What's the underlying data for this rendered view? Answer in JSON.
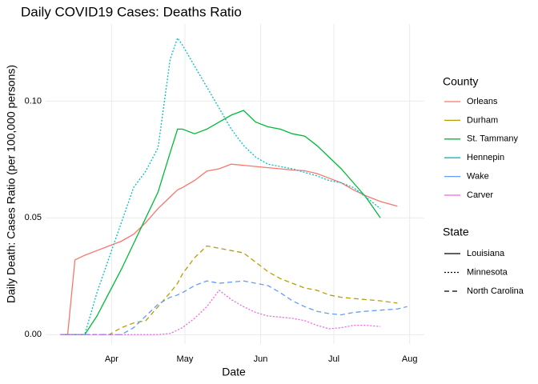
{
  "chart_data": {
    "type": "line",
    "title": "Daily COVID19 Cases: Deaths Ratio",
    "x_label": "Date",
    "y_label": "Daily Death: Cases Ratio (per 100,000 persons)",
    "x": [
      10,
      13,
      16,
      20,
      25,
      30,
      35,
      40,
      45,
      50,
      55,
      58,
      60,
      65,
      70,
      75,
      80,
      85,
      90,
      95,
      100,
      105,
      110,
      115,
      120,
      125,
      130,
      135,
      141,
      148,
      152
    ],
    "xlim": [
      4,
      159
    ],
    "xticks": [
      {
        "value": 31,
        "label": "Apr"
      },
      {
        "value": 61,
        "label": "May"
      },
      {
        "value": 92,
        "label": "Jun"
      },
      {
        "value": 122,
        "label": "Jul"
      },
      {
        "value": 153,
        "label": "Aug"
      }
    ],
    "ylim": [
      -0.004,
      0.133
    ],
    "yticks": [
      {
        "value": 0,
        "label": "0.00"
      },
      {
        "value": 0.05,
        "label": "0.05"
      },
      {
        "value": 0.1,
        "label": "0.10"
      }
    ],
    "grid": true,
    "legend_title": "County",
    "series": [
      {
        "name": "Orleans",
        "color": "#F8766D",
        "linetype": "solid",
        "values": [
          0,
          0,
          0.032,
          0.034,
          0.036,
          0.038,
          0.04,
          0.043,
          0.048,
          0.054,
          0.059,
          0.062,
          0.063,
          0.066,
          0.07,
          0.071,
          0.073,
          0.0725,
          0.072,
          0.0715,
          0.071,
          0.0705,
          0.0702,
          0.069,
          0.067,
          0.065,
          0.062,
          0.0595,
          0.057,
          0.055,
          null
        ]
      },
      {
        "name": "Durham",
        "color": "#B79F00",
        "linetype": "dashed",
        "values": [
          0,
          0,
          0,
          0,
          0,
          0,
          0.003,
          0.005,
          0.006,
          0.012,
          0.018,
          0.022,
          0.026,
          0.033,
          0.038,
          0.037,
          0.036,
          0.035,
          0.031,
          0.027,
          0.024,
          0.022,
          0.02,
          0.019,
          0.017,
          0.016,
          0.0155,
          0.015,
          0.0145,
          0.0135,
          null
        ]
      },
      {
        "name": "St. Tammany",
        "color": "#00BA38",
        "linetype": "solid",
        "values": [
          0,
          0,
          0,
          0,
          0.008,
          0.018,
          0.028,
          0.039,
          0.05,
          0.061,
          0.078,
          0.088,
          0.088,
          0.086,
          0.088,
          0.091,
          0.094,
          0.096,
          0.091,
          0.089,
          0.088,
          0.086,
          0.085,
          0.081,
          0.076,
          0.071,
          0.065,
          0.059,
          0.05,
          null,
          null
        ]
      },
      {
        "name": "Hennepin",
        "color": "#00BFC4",
        "linetype": "dotted",
        "values": [
          0,
          0,
          0,
          0,
          0.018,
          0.033,
          0.048,
          0.063,
          0.07,
          0.08,
          0.118,
          0.127,
          0.124,
          0.115,
          0.106,
          0.097,
          0.088,
          0.081,
          0.076,
          0.073,
          0.072,
          0.071,
          0.0695,
          0.068,
          0.066,
          0.065,
          0.063,
          0.059,
          0.054,
          null,
          null
        ]
      },
      {
        "name": "Wake",
        "color": "#619CFF",
        "linetype": "dashed",
        "values": [
          0,
          0,
          0,
          0,
          0,
          0,
          0,
          0.003,
          0.008,
          0.013,
          0.016,
          0.017,
          0.018,
          0.021,
          0.023,
          0.022,
          0.0225,
          0.023,
          0.022,
          0.021,
          0.018,
          0.0145,
          0.012,
          0.01,
          0.009,
          0.0085,
          0.0095,
          0.01,
          0.0105,
          0.011,
          0.012
        ]
      },
      {
        "name": "Carver",
        "color": "#F564E3",
        "linetype": "dotted",
        "values": [
          0,
          0,
          0,
          0,
          0,
          0,
          0,
          0,
          0,
          0,
          0.0005,
          0.002,
          0.003,
          0.007,
          0.012,
          0.019,
          0.015,
          0.012,
          0.0095,
          0.008,
          0.0075,
          0.007,
          0.006,
          0.004,
          0.0025,
          0.003,
          0.004,
          0.004,
          0.0035,
          null,
          null
        ]
      }
    ],
    "linetype_legend": {
      "title": "State",
      "entries": [
        {
          "name": "Louisiana",
          "linetype": "solid"
        },
        {
          "name": "Minnesota",
          "linetype": "dotted"
        },
        {
          "name": "North Carolina",
          "linetype": "dashed"
        }
      ]
    }
  }
}
